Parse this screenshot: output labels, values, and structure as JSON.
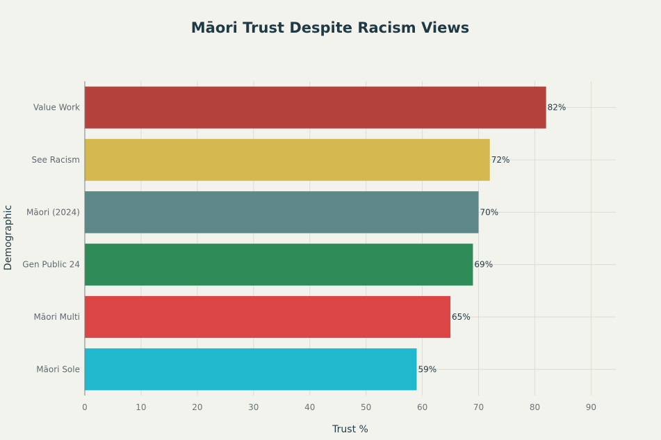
{
  "chart_data": {
    "type": "bar",
    "orientation": "horizontal",
    "title": "Māori Trust Despite Racism Views",
    "xlabel": "Trust %",
    "ylabel": "Demographic",
    "categories": [
      "Value Work",
      "See Racism",
      "Māori (2024)",
      "Gen Public 24",
      "Māori Multi",
      "Māori Sole"
    ],
    "values": [
      82,
      72,
      70,
      69,
      65,
      59
    ],
    "data_labels": [
      "82%",
      "72%",
      "70%",
      "69%",
      "65%",
      "59%"
    ],
    "colors": [
      "#b5413d",
      "#d3b94f",
      "#5d8789",
      "#2e8b57",
      "#db4545",
      "#1fb8cd"
    ],
    "xticks": [
      0,
      10,
      20,
      30,
      40,
      50,
      60,
      70,
      80,
      90
    ],
    "xtick_labels": [
      "0",
      "10",
      "20",
      "30",
      "40",
      "50",
      "60",
      "70",
      "80",
      "90"
    ],
    "xlim": [
      0,
      94.4
    ],
    "grid": true,
    "legend": "none"
  }
}
